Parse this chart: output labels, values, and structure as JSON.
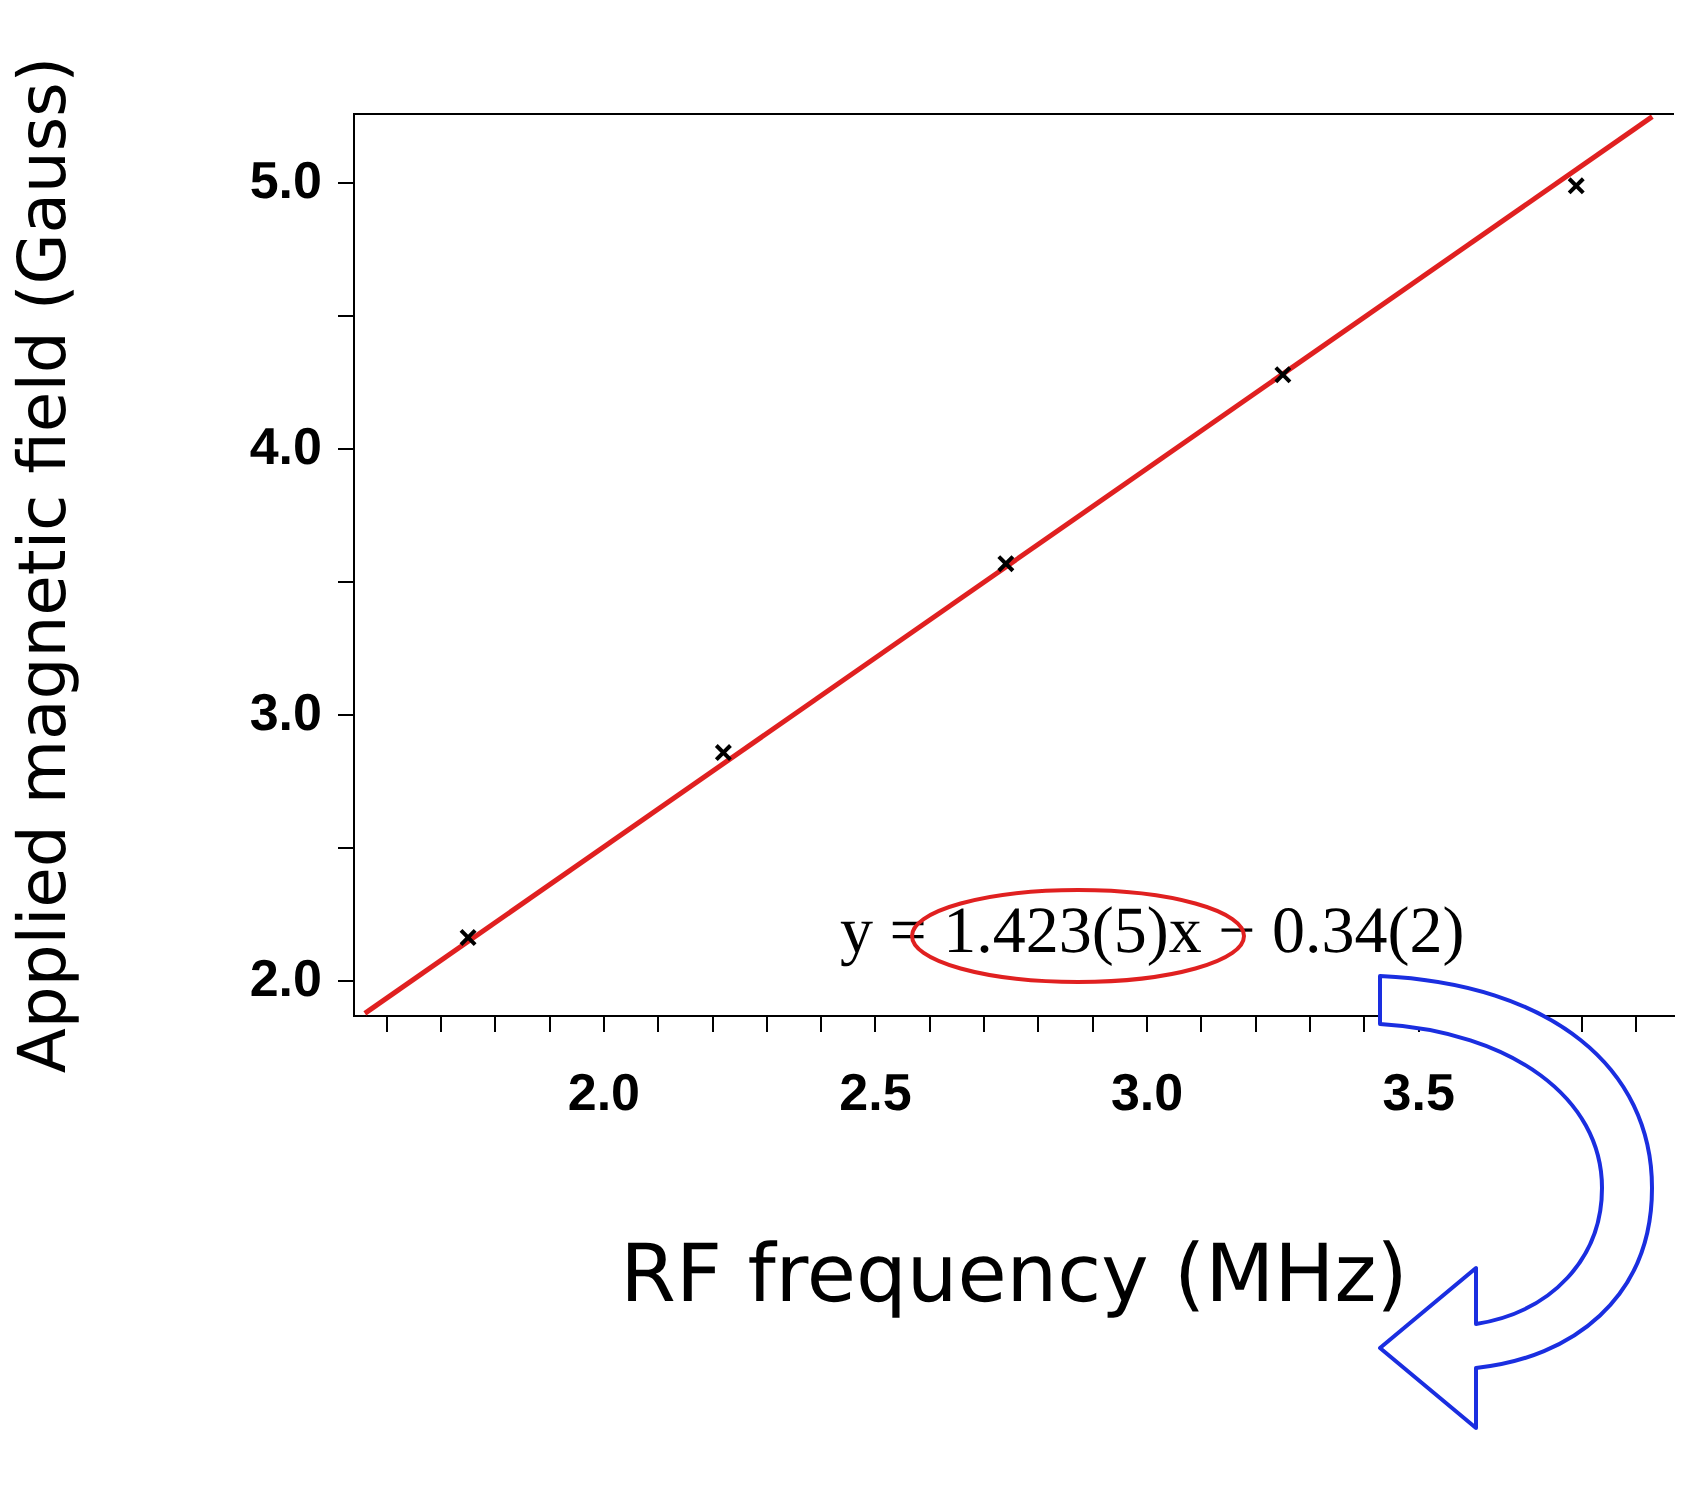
{
  "chart_data": {
    "type": "scatter",
    "xlabel": "RF frequency (MHz)",
    "ylabel": "Applied magnetic field (Gauss)",
    "xlim": [
      1.54,
      3.97
    ],
    "ylim": [
      1.87,
      5.26
    ],
    "xticks": [
      {
        "value": 1.6,
        "label": null
      },
      {
        "value": 1.7,
        "label": null
      },
      {
        "value": 1.8,
        "label": null
      },
      {
        "value": 1.9,
        "label": null
      },
      {
        "value": 2,
        "label": "2.0"
      },
      {
        "value": 2.1,
        "label": null
      },
      {
        "value": 2.2,
        "label": null
      },
      {
        "value": 2.3,
        "label": null
      },
      {
        "value": 2.4,
        "label": null
      },
      {
        "value": 2.5,
        "label": "2.5"
      },
      {
        "value": 2.6,
        "label": null
      },
      {
        "value": 2.7,
        "label": null
      },
      {
        "value": 2.8,
        "label": null
      },
      {
        "value": 2.9,
        "label": null
      },
      {
        "value": 3,
        "label": "3.0"
      },
      {
        "value": 3.1,
        "label": null
      },
      {
        "value": 3.2,
        "label": null
      },
      {
        "value": 3.3,
        "label": null
      },
      {
        "value": 3.4,
        "label": null
      },
      {
        "value": 3.5,
        "label": "3.5"
      },
      {
        "value": 3.6,
        "label": null
      },
      {
        "value": 3.7,
        "label": null
      },
      {
        "value": 3.8,
        "label": null
      },
      {
        "value": 3.9,
        "label": null
      }
    ],
    "yticks": [
      {
        "value": 2,
        "label": "2.0"
      },
      {
        "value": 2.5,
        "label": null
      },
      {
        "value": 3,
        "label": "3.0"
      },
      {
        "value": 3.5,
        "label": null
      },
      {
        "value": 4,
        "label": "4.0"
      },
      {
        "value": 4.5,
        "label": null
      },
      {
        "value": 5,
        "label": "5.0"
      }
    ],
    "grid": false,
    "legend": false,
    "annotations": [
      "y = 1.423(5)x − 0.34(2)"
    ],
    "series": [
      {
        "type": "line",
        "color": "#e02020",
        "marker": "none",
        "line_style": "solid",
        "x": [
          1.56,
          3.93
        ],
        "values": [
          1.88,
          5.25
        ]
      },
      {
        "type": "scatter",
        "color": "#000000",
        "marker": "cross",
        "x": [
          1.75,
          2.22,
          2.74,
          3.25,
          3.79
        ],
        "values": [
          2.165,
          2.86,
          3.57,
          4.28,
          4.99
        ]
      }
    ]
  }
}
